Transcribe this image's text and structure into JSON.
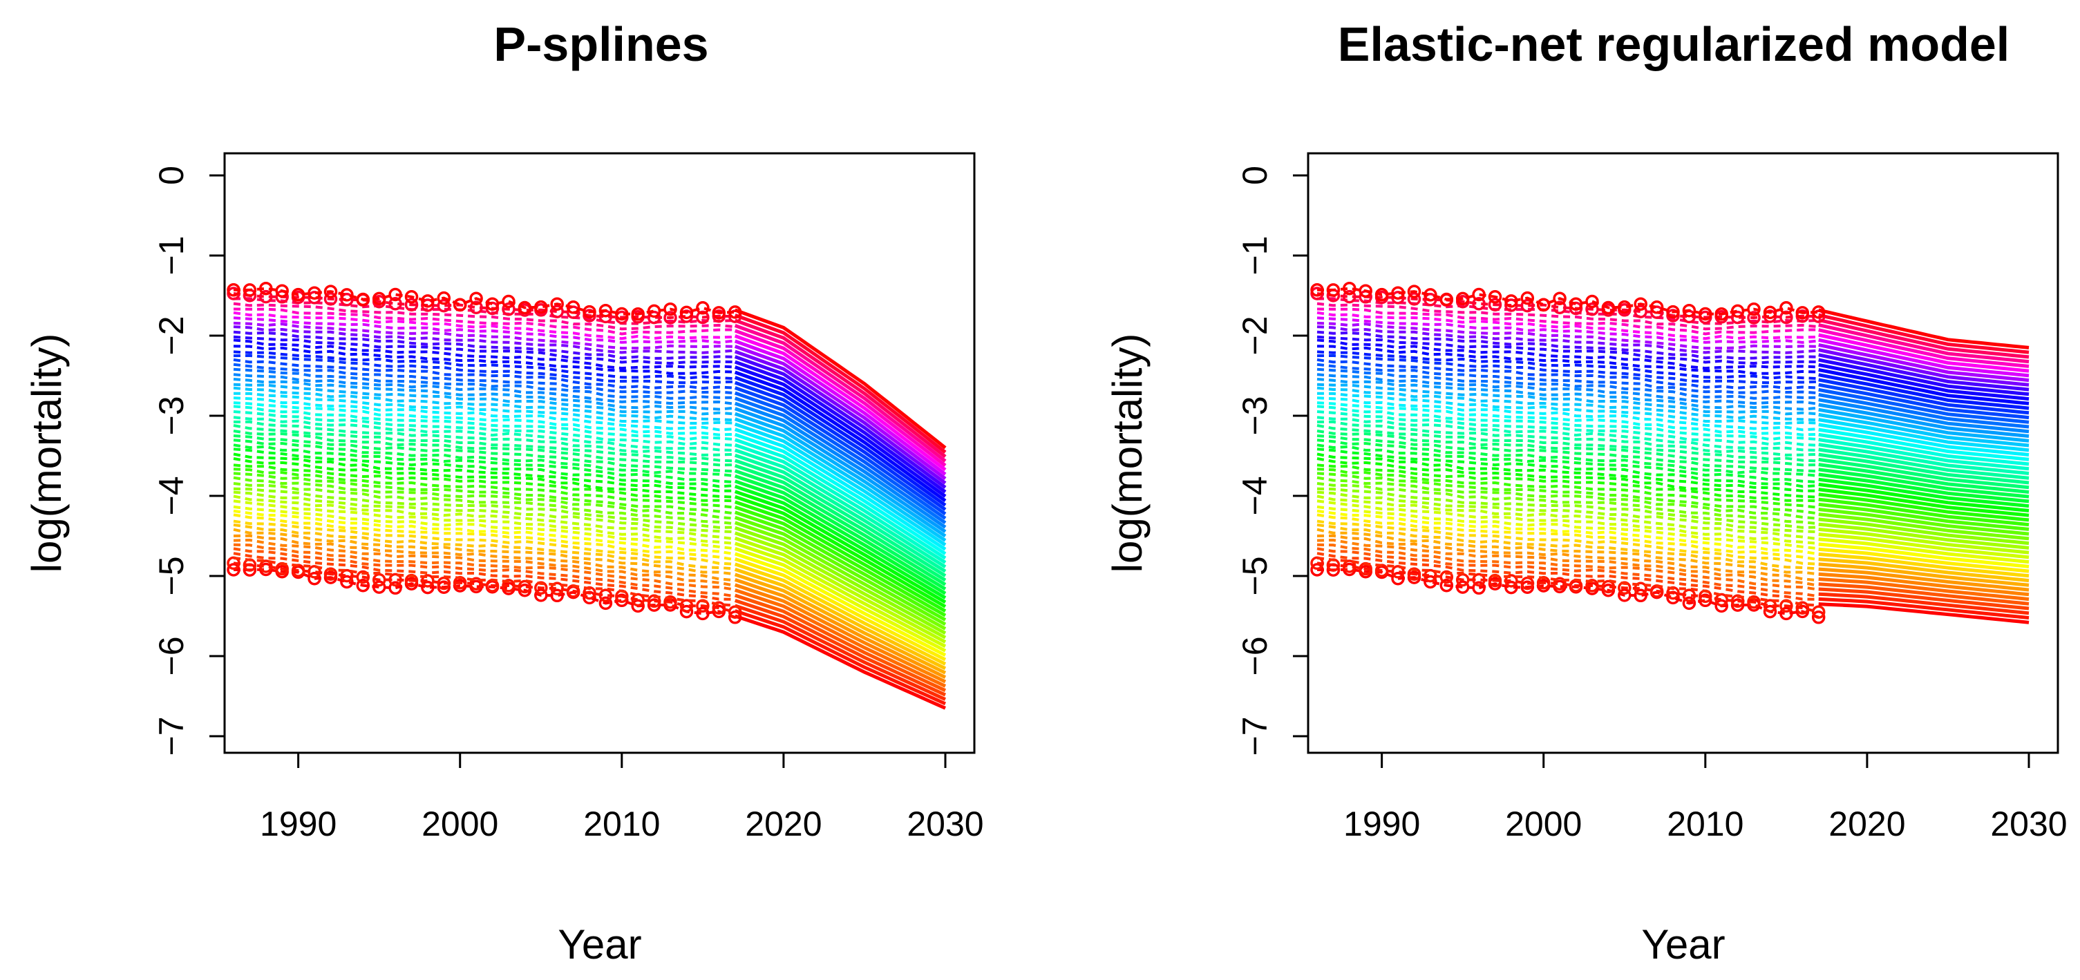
{
  "figure": {
    "background": "#ffffff",
    "axis_color": "#000000"
  },
  "chart_data": [
    {
      "type": "line",
      "title": "P-splines",
      "xlabel": "Year",
      "ylabel": "log(mortality)",
      "xlim": [
        1986,
        2030
      ],
      "ylim": [
        -7,
        0
      ],
      "xticks": [
        1990,
        2000,
        2010,
        2020,
        2030
      ],
      "xtick_labels": [
        "1990",
        "2000",
        "2010",
        "2020",
        "2030"
      ],
      "yticks": [
        0,
        -1,
        -2,
        -3,
        -4,
        -5,
        -6,
        -7
      ],
      "ytick_labels": [
        "0",
        "−1",
        "−2",
        "−3",
        "−4",
        "−5",
        "−6",
        "−7"
      ],
      "observed_range": [
        1986,
        2017
      ],
      "forecast_range": [
        2017,
        2030
      ],
      "n_series": 60,
      "color_scheme": "rainbow (red → yellow → green → cyan → blue → magenta → red)",
      "series_envelope": {
        "top_observed": {
          "x": [
            1986,
            1995,
            2005,
            2010,
            2014,
            2017
          ],
          "y": [
            -1.42,
            -1.52,
            -1.62,
            -1.72,
            -1.7,
            -1.68
          ]
        },
        "top_forecast": {
          "x": [
            2017,
            2020,
            2025,
            2030
          ],
          "y": [
            -1.68,
            -1.9,
            -2.6,
            -3.4
          ]
        },
        "bottom_observed": {
          "x": [
            1986,
            1995,
            2005,
            2010,
            2015,
            2017
          ],
          "y": [
            -4.9,
            -5.1,
            -5.2,
            -5.32,
            -5.45,
            -5.5
          ]
        },
        "bottom_forecast": {
          "x": [
            2017,
            2020,
            2025,
            2030
          ],
          "y": [
            -5.5,
            -5.7,
            -6.2,
            -6.65
          ]
        }
      }
    },
    {
      "type": "line",
      "title": "Elastic-net regularized model",
      "xlabel": "Year",
      "ylabel": "log(mortality)",
      "xlim": [
        1986,
        2030
      ],
      "ylim": [
        -7,
        0
      ],
      "xticks": [
        1990,
        2000,
        2010,
        2020,
        2030
      ],
      "xtick_labels": [
        "1990",
        "2000",
        "2010",
        "2020",
        "2030"
      ],
      "yticks": [
        0,
        -1,
        -2,
        -3,
        -4,
        -5,
        -6,
        -7
      ],
      "ytick_labels": [
        "0",
        "−1",
        "−2",
        "−3",
        "−4",
        "−5",
        "−6",
        "−7"
      ],
      "observed_range": [
        1986,
        2017
      ],
      "forecast_range": [
        2017,
        2030
      ],
      "n_series": 60,
      "color_scheme": "rainbow (red → yellow → green → cyan → blue → magenta → red)",
      "series_envelope": {
        "top_observed": {
          "x": [
            1986,
            1995,
            2005,
            2010,
            2014,
            2017
          ],
          "y": [
            -1.42,
            -1.52,
            -1.62,
            -1.72,
            -1.7,
            -1.68
          ]
        },
        "top_forecast": {
          "x": [
            2017,
            2020,
            2025,
            2030
          ],
          "y": [
            -1.68,
            -1.82,
            -2.05,
            -2.15
          ]
        },
        "bottom_observed": {
          "x": [
            1986,
            1995,
            2005,
            2010,
            2015,
            2017
          ],
          "y": [
            -4.9,
            -5.1,
            -5.2,
            -5.32,
            -5.45,
            -5.5
          ]
        },
        "bottom_forecast": {
          "x": [
            2017,
            2020,
            2025,
            2030
          ],
          "y": [
            -5.35,
            -5.38,
            -5.48,
            -5.58
          ]
        }
      }
    }
  ]
}
